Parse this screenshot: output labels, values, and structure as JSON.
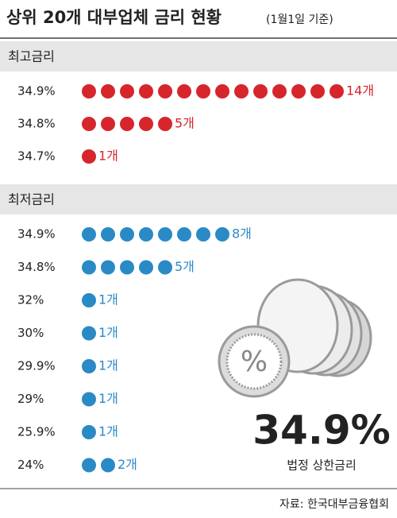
{
  "title": "상위 20개 대부업체 금리 현황",
  "subtitle": "(1월1일 기준)",
  "chart_data": [
    {
      "type": "dot",
      "title": "최고금리",
      "color": "#d7252c",
      "categories": [
        "34.9%",
        "34.8%",
        "34.7%"
      ],
      "values": [
        14,
        5,
        1
      ],
      "value_labels": [
        "14개",
        "5개",
        "1개"
      ]
    },
    {
      "type": "dot",
      "title": "최저금리",
      "color": "#2a8ac6",
      "categories": [
        "34.9%",
        "34.8%",
        "32%",
        "30%",
        "29.9%",
        "29%",
        "25.9%",
        "24%"
      ],
      "values": [
        8,
        5,
        1,
        1,
        1,
        1,
        1,
        2
      ],
      "value_labels": [
        "8개",
        "5개",
        "1개",
        "1개",
        "1개",
        "1개",
        "1개",
        "2개"
      ]
    }
  ],
  "callout": {
    "value": "34.9%",
    "label": "법정 상한금리"
  },
  "source": "자료: 한국대부금융협회"
}
